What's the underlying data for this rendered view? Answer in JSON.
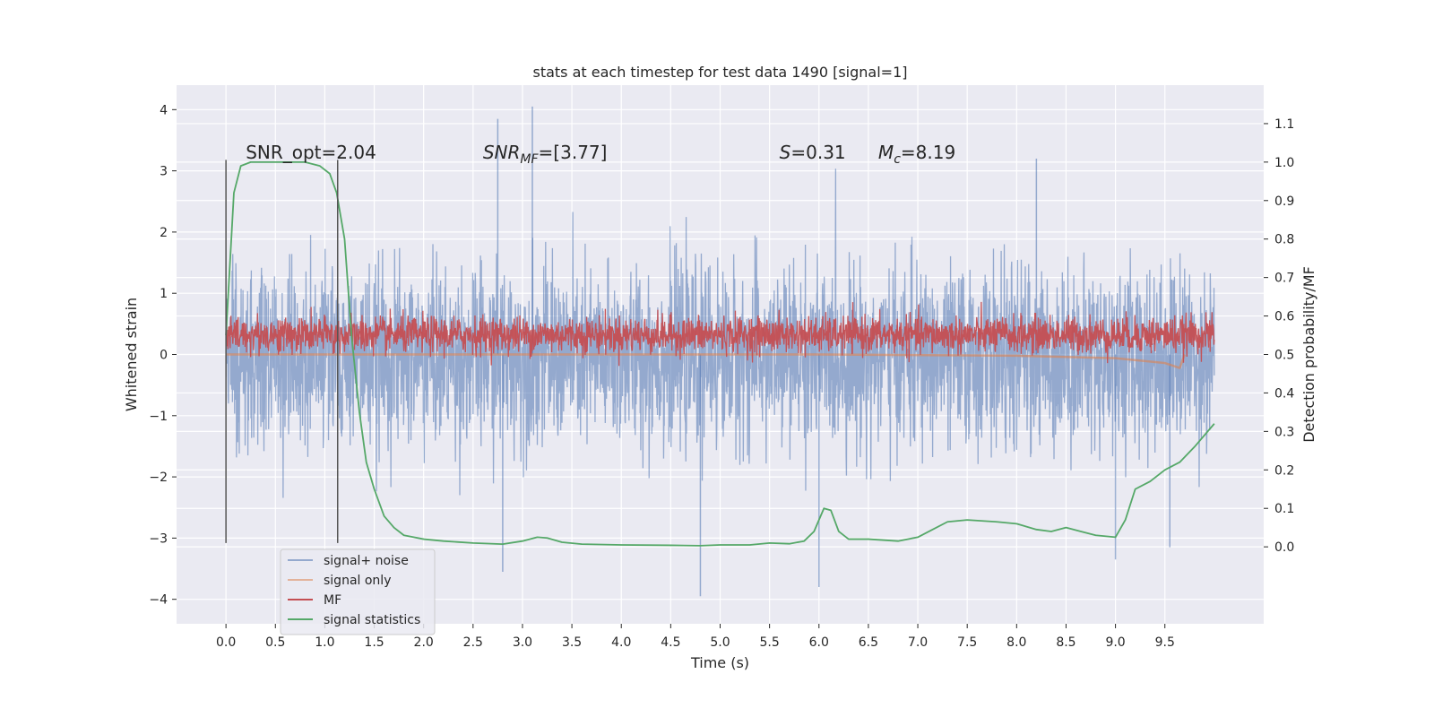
{
  "chart_data": {
    "type": "line",
    "title": "stats at each timestep for test data 1490 [signal=1]",
    "xlabel": "Time (s)",
    "ylabel": "Whitened strain",
    "ylabel_right": "Detection probability/MF",
    "xlim": [
      -0.5,
      10.5
    ],
    "ylim": [
      -4.4,
      4.4
    ],
    "ylim_right": [
      -0.2,
      1.2
    ],
    "x_ticks": [
      0.0,
      0.5,
      1.0,
      1.5,
      2.0,
      2.5,
      3.0,
      3.5,
      4.0,
      4.5,
      5.0,
      5.5,
      6.0,
      6.5,
      7.0,
      7.5,
      8.0,
      8.5,
      9.0,
      9.5
    ],
    "x_tick_labels": [
      "0.0",
      "0.5",
      "1.0",
      "1.5",
      "2.0",
      "2.5",
      "3.0",
      "3.5",
      "4.0",
      "4.5",
      "5.0",
      "5.5",
      "6.0",
      "6.5",
      "7.0",
      "7.5",
      "8.0",
      "8.5",
      "9.0",
      "9.5"
    ],
    "y_ticks": [
      -4,
      -3,
      -2,
      -1,
      0,
      1,
      2,
      3,
      4
    ],
    "y_tick_labels": [
      "−4",
      "−3",
      "−2",
      "−1",
      "0",
      "1",
      "2",
      "3",
      "4"
    ],
    "y_ticks_right": [
      0.0,
      0.1,
      0.2,
      0.3,
      0.4,
      0.5,
      0.6,
      0.7,
      0.8,
      0.9,
      1.0,
      1.1
    ],
    "y_tick_labels_right": [
      "0.0",
      "0.1",
      "0.2",
      "0.3",
      "0.4",
      "0.5",
      "0.6",
      "0.7",
      "0.8",
      "0.9",
      "1.0",
      "1.1"
    ],
    "grid": true,
    "legend_position": "lower-left",
    "annotations": [
      {
        "text": "SNR_opt=2.04",
        "x": 0.2,
        "y": 3.2
      },
      {
        "text": "SNR",
        "sub": "MF",
        "rest": "=[3.77]",
        "x": 2.6,
        "y": 3.2
      },
      {
        "text": "S",
        "rest": "=0.31",
        "x": 5.6,
        "y": 3.2
      },
      {
        "text": "M",
        "sub": "c",
        "rest": "=8.19",
        "x": 6.6,
        "y": 3.2
      }
    ],
    "vlines": [
      {
        "x": 0.0,
        "ymin": -3.08,
        "ymax": 3.18
      },
      {
        "x": 1.13,
        "ymin": -3.08,
        "ymax": 3.18
      }
    ],
    "series": [
      {
        "name": "signal+ noise",
        "axis": "left",
        "color": "#4c72b0",
        "style": "noise",
        "x_range": [
          0.0,
          10.0
        ],
        "typical_range": [
          -1.3,
          1.3
        ],
        "extremes": [
          {
            "x": 3.1,
            "y": 4.05
          },
          {
            "x": 2.75,
            "y": 3.85
          },
          {
            "x": 8.2,
            "y": 3.2
          },
          {
            "x": 4.8,
            "y": -3.95
          },
          {
            "x": 6.0,
            "y": -3.8
          },
          {
            "x": 2.8,
            "y": -3.55
          },
          {
            "x": 9.55,
            "y": -3.15
          },
          {
            "x": 9.0,
            "y": -3.35
          }
        ]
      },
      {
        "name": "signal only",
        "axis": "left",
        "color": "#dd8452",
        "x": [
          0.0,
          2.0,
          4.0,
          6.0,
          8.0,
          9.0,
          9.5,
          9.65,
          9.7
        ],
        "y": [
          0.0,
          0.0,
          0.0,
          0.0,
          -0.02,
          -0.06,
          -0.14,
          -0.22,
          0.0
        ]
      },
      {
        "name": "MF",
        "axis": "left",
        "color": "#c44e52",
        "style": "noise",
        "x_range": [
          0.0,
          10.0
        ],
        "typical_range": [
          0.05,
          0.65
        ]
      },
      {
        "name": "signal statistics",
        "axis": "right",
        "color": "#55a868",
        "x": [
          0.0,
          0.08,
          0.15,
          0.25,
          0.4,
          0.6,
          0.8,
          0.95,
          1.05,
          1.12,
          1.2,
          1.27,
          1.35,
          1.42,
          1.5,
          1.6,
          1.7,
          1.8,
          1.9,
          2.0,
          2.2,
          2.5,
          2.8,
          3.0,
          3.15,
          3.25,
          3.4,
          3.6,
          4.0,
          4.5,
          4.8,
          5.0,
          5.3,
          5.5,
          5.7,
          5.85,
          5.95,
          6.05,
          6.12,
          6.2,
          6.3,
          6.5,
          6.8,
          7.0,
          7.15,
          7.3,
          7.5,
          7.8,
          8.0,
          8.2,
          8.35,
          8.5,
          8.65,
          8.8,
          9.0,
          9.1,
          9.2,
          9.35,
          9.5,
          9.65,
          9.8,
          10.0
        ],
        "y": [
          0.55,
          0.92,
          0.99,
          1.0,
          1.0,
          1.0,
          1.0,
          0.99,
          0.97,
          0.92,
          0.8,
          0.55,
          0.35,
          0.22,
          0.15,
          0.08,
          0.05,
          0.03,
          0.025,
          0.02,
          0.015,
          0.01,
          0.007,
          0.015,
          0.025,
          0.023,
          0.012,
          0.007,
          0.005,
          0.004,
          0.003,
          0.005,
          0.005,
          0.01,
          0.008,
          0.015,
          0.04,
          0.1,
          0.095,
          0.04,
          0.02,
          0.02,
          0.015,
          0.025,
          0.045,
          0.065,
          0.07,
          0.065,
          0.06,
          0.045,
          0.04,
          0.05,
          0.04,
          0.03,
          0.025,
          0.07,
          0.15,
          0.17,
          0.2,
          0.22,
          0.26,
          0.32
        ]
      }
    ]
  }
}
